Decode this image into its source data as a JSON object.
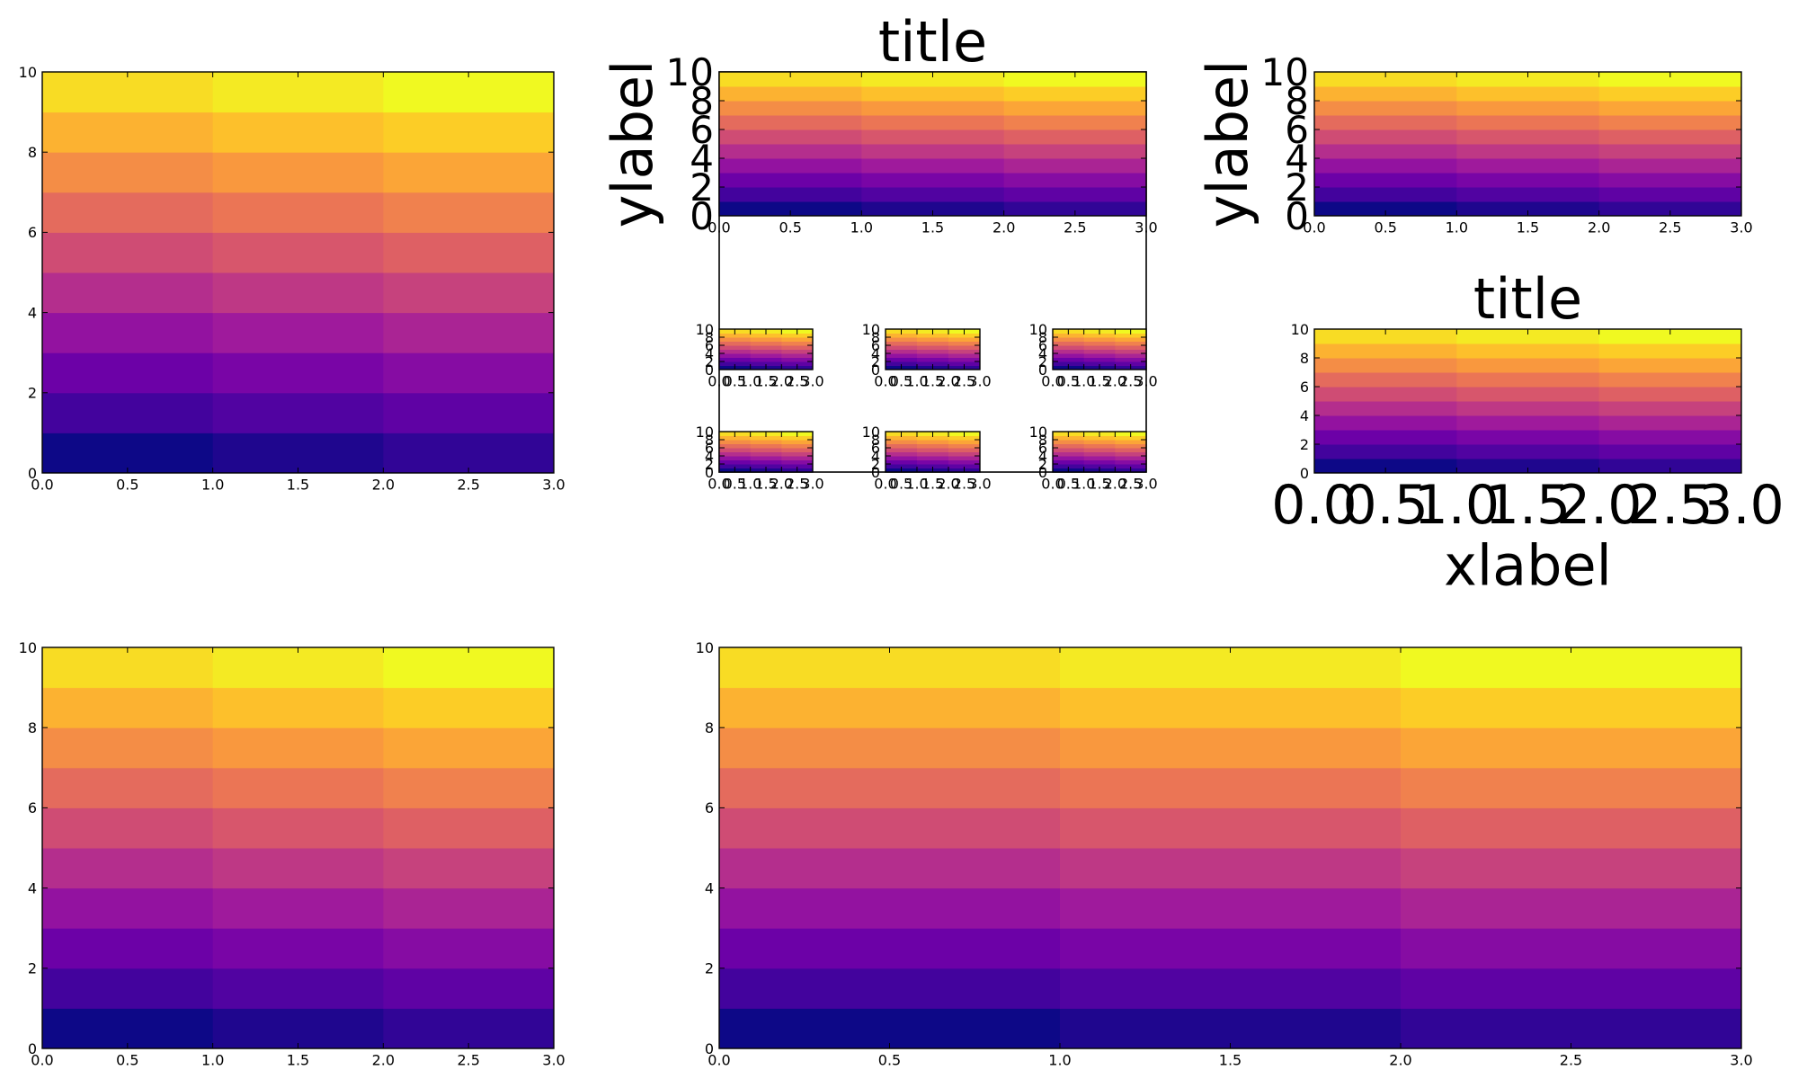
{
  "chart_data": [
    {
      "id": "top-left",
      "type": "heatmap",
      "title": "",
      "xlabel": "",
      "ylabel": "",
      "x_edges": [
        0,
        1,
        2,
        3
      ],
      "y_edges": [
        0,
        1,
        2,
        3,
        4,
        5,
        6,
        7,
        8,
        9,
        10
      ],
      "xlim": [
        0,
        3
      ],
      "ylim": [
        0,
        10
      ],
      "xticks": [
        "0.0",
        "0.5",
        "1.0",
        "1.5",
        "2.0",
        "2.5",
        "3.0"
      ],
      "yticks": [
        "0",
        "2",
        "4",
        "6",
        "8",
        "10"
      ],
      "colormap": "plasma",
      "values": [
        [
          0,
          1,
          2
        ],
        [
          3,
          4,
          5
        ],
        [
          6,
          7,
          8
        ],
        [
          9,
          10,
          11
        ],
        [
          12,
          13,
          14
        ],
        [
          15,
          16,
          17
        ],
        [
          18,
          19,
          20
        ],
        [
          21,
          22,
          23
        ],
        [
          24,
          25,
          26
        ],
        [
          27,
          28,
          29
        ]
      ]
    },
    {
      "id": "top-middle",
      "type": "heatmap",
      "title": "title",
      "xlabel": "",
      "ylabel": "ylabel",
      "x_edges": [
        0,
        1,
        2,
        3
      ],
      "y_edges": [
        0,
        1,
        2,
        3,
        4,
        5,
        6,
        7,
        8,
        9,
        10
      ],
      "xlim": [
        0,
        3
      ],
      "ylim": [
        0,
        10
      ],
      "xticks": [
        "0.0",
        "0.5",
        "1.0",
        "1.5",
        "2.0",
        "2.5",
        "3.0"
      ],
      "yticks": [
        "0",
        "2",
        "4",
        "6",
        "8",
        "10"
      ],
      "colormap": "plasma",
      "values": [
        [
          0,
          1,
          2
        ],
        [
          3,
          4,
          5
        ],
        [
          6,
          7,
          8
        ],
        [
          9,
          10,
          11
        ],
        [
          12,
          13,
          14
        ],
        [
          15,
          16,
          17
        ],
        [
          18,
          19,
          20
        ],
        [
          21,
          22,
          23
        ],
        [
          24,
          25,
          26
        ],
        [
          27,
          28,
          29
        ]
      ]
    },
    {
      "id": "top-right",
      "type": "heatmap",
      "title": "",
      "xlabel": "",
      "ylabel": "ylabel",
      "x_edges": [
        0,
        1,
        2,
        3
      ],
      "y_edges": [
        0,
        1,
        2,
        3,
        4,
        5,
        6,
        7,
        8,
        9,
        10
      ],
      "xlim": [
        0,
        3
      ],
      "ylim": [
        0,
        10
      ],
      "xticks": [
        "0.0",
        "0.5",
        "1.0",
        "1.5",
        "2.0",
        "2.5",
        "3.0"
      ],
      "yticks": [
        "0",
        "2",
        "4",
        "6",
        "8",
        "10"
      ],
      "colormap": "plasma",
      "values": [
        [
          0,
          1,
          2
        ],
        [
          3,
          4,
          5
        ],
        [
          6,
          7,
          8
        ],
        [
          9,
          10,
          11
        ],
        [
          12,
          13,
          14
        ],
        [
          15,
          16,
          17
        ],
        [
          18,
          19,
          20
        ],
        [
          21,
          22,
          23
        ],
        [
          24,
          25,
          26
        ],
        [
          27,
          28,
          29
        ]
      ]
    },
    {
      "id": "mid-right",
      "type": "heatmap",
      "title": "title",
      "xlabel": "xlabel",
      "ylabel": "",
      "x_edges": [
        0,
        1,
        2,
        3
      ],
      "y_edges": [
        0,
        1,
        2,
        3,
        4,
        5,
        6,
        7,
        8,
        9,
        10
      ],
      "xlim": [
        0,
        3
      ],
      "ylim": [
        0,
        10
      ],
      "xticks": [
        "0.0",
        "0.5",
        "1.0",
        "1.5",
        "2.0",
        "2.5",
        "3.0"
      ],
      "yticks": [
        "0",
        "2",
        "4",
        "6",
        "8",
        "10"
      ],
      "colormap": "plasma",
      "values": [
        [
          0,
          1,
          2
        ],
        [
          3,
          4,
          5
        ],
        [
          6,
          7,
          8
        ],
        [
          9,
          10,
          11
        ],
        [
          12,
          13,
          14
        ],
        [
          15,
          16,
          17
        ],
        [
          18,
          19,
          20
        ],
        [
          21,
          22,
          23
        ],
        [
          24,
          25,
          26
        ],
        [
          27,
          28,
          29
        ]
      ]
    },
    {
      "id": "small-1",
      "type": "heatmap",
      "title": "",
      "xlabel": "",
      "ylabel": "",
      "x_edges": [
        0,
        1,
        2,
        3
      ],
      "y_edges": [
        0,
        1,
        2,
        3,
        4,
        5,
        6,
        7,
        8,
        9,
        10
      ],
      "xlim": [
        0,
        3
      ],
      "ylim": [
        0,
        10
      ],
      "xticks": [
        "0.0",
        "0.5",
        "1.0",
        "1.5",
        "2.0",
        "2.5",
        "3.0"
      ],
      "yticks": [
        "0",
        "2",
        "4",
        "6",
        "8",
        "10"
      ],
      "colormap": "plasma",
      "values": [
        [
          0,
          1,
          2
        ],
        [
          3,
          4,
          5
        ],
        [
          6,
          7,
          8
        ],
        [
          9,
          10,
          11
        ],
        [
          12,
          13,
          14
        ],
        [
          15,
          16,
          17
        ],
        [
          18,
          19,
          20
        ],
        [
          21,
          22,
          23
        ],
        [
          24,
          25,
          26
        ],
        [
          27,
          28,
          29
        ]
      ]
    },
    {
      "id": "small-2",
      "type": "heatmap",
      "title": "",
      "xlabel": "",
      "ylabel": "",
      "x_edges": [
        0,
        1,
        2,
        3
      ],
      "y_edges": [
        0,
        1,
        2,
        3,
        4,
        5,
        6,
        7,
        8,
        9,
        10
      ],
      "xlim": [
        0,
        3
      ],
      "ylim": [
        0,
        10
      ],
      "xticks": [
        "0.0",
        "0.5",
        "1.0",
        "1.5",
        "2.0",
        "2.5",
        "3.0"
      ],
      "yticks": [
        "0",
        "2",
        "4",
        "6",
        "8",
        "10"
      ],
      "colormap": "plasma",
      "values": [
        [
          0,
          1,
          2
        ],
        [
          3,
          4,
          5
        ],
        [
          6,
          7,
          8
        ],
        [
          9,
          10,
          11
        ],
        [
          12,
          13,
          14
        ],
        [
          15,
          16,
          17
        ],
        [
          18,
          19,
          20
        ],
        [
          21,
          22,
          23
        ],
        [
          24,
          25,
          26
        ],
        [
          27,
          28,
          29
        ]
      ]
    },
    {
      "id": "small-3",
      "type": "heatmap",
      "title": "",
      "xlabel": "",
      "ylabel": "",
      "x_edges": [
        0,
        1,
        2,
        3
      ],
      "y_edges": [
        0,
        1,
        2,
        3,
        4,
        5,
        6,
        7,
        8,
        9,
        10
      ],
      "xlim": [
        0,
        3
      ],
      "ylim": [
        0,
        10
      ],
      "xticks": [
        "0.0",
        "0.5",
        "1.0",
        "1.5",
        "2.0",
        "2.5",
        "3.0"
      ],
      "yticks": [
        "0",
        "2",
        "4",
        "6",
        "8",
        "10"
      ],
      "colormap": "plasma",
      "values": [
        [
          0,
          1,
          2
        ],
        [
          3,
          4,
          5
        ],
        [
          6,
          7,
          8
        ],
        [
          9,
          10,
          11
        ],
        [
          12,
          13,
          14
        ],
        [
          15,
          16,
          17
        ],
        [
          18,
          19,
          20
        ],
        [
          21,
          22,
          23
        ],
        [
          24,
          25,
          26
        ],
        [
          27,
          28,
          29
        ]
      ]
    },
    {
      "id": "small-4",
      "type": "heatmap",
      "title": "",
      "xlabel": "",
      "ylabel": "",
      "x_edges": [
        0,
        1,
        2,
        3
      ],
      "y_edges": [
        0,
        1,
        2,
        3,
        4,
        5,
        6,
        7,
        8,
        9,
        10
      ],
      "xlim": [
        0,
        3
      ],
      "ylim": [
        0,
        10
      ],
      "xticks": [
        "0.0",
        "0.5",
        "1.0",
        "1.5",
        "2.0",
        "2.5",
        "3.0"
      ],
      "yticks": [
        "0",
        "2",
        "4",
        "6",
        "8",
        "10"
      ],
      "colormap": "plasma",
      "values": [
        [
          0,
          1,
          2
        ],
        [
          3,
          4,
          5
        ],
        [
          6,
          7,
          8
        ],
        [
          9,
          10,
          11
        ],
        [
          12,
          13,
          14
        ],
        [
          15,
          16,
          17
        ],
        [
          18,
          19,
          20
        ],
        [
          21,
          22,
          23
        ],
        [
          24,
          25,
          26
        ],
        [
          27,
          28,
          29
        ]
      ]
    },
    {
      "id": "small-5",
      "type": "heatmap",
      "title": "",
      "xlabel": "",
      "ylabel": "",
      "x_edges": [
        0,
        1,
        2,
        3
      ],
      "y_edges": [
        0,
        1,
        2,
        3,
        4,
        5,
        6,
        7,
        8,
        9,
        10
      ],
      "xlim": [
        0,
        3
      ],
      "ylim": [
        0,
        10
      ],
      "xticks": [
        "0.0",
        "0.5",
        "1.0",
        "1.5",
        "2.0",
        "2.5",
        "3.0"
      ],
      "yticks": [
        "0",
        "2",
        "4",
        "6",
        "8",
        "10"
      ],
      "colormap": "plasma",
      "values": [
        [
          0,
          1,
          2
        ],
        [
          3,
          4,
          5
        ],
        [
          6,
          7,
          8
        ],
        [
          9,
          10,
          11
        ],
        [
          12,
          13,
          14
        ],
        [
          15,
          16,
          17
        ],
        [
          18,
          19,
          20
        ],
        [
          21,
          22,
          23
        ],
        [
          24,
          25,
          26
        ],
        [
          27,
          28,
          29
        ]
      ]
    },
    {
      "id": "small-6",
      "type": "heatmap",
      "title": "",
      "xlabel": "",
      "ylabel": "",
      "x_edges": [
        0,
        1,
        2,
        3
      ],
      "y_edges": [
        0,
        1,
        2,
        3,
        4,
        5,
        6,
        7,
        8,
        9,
        10
      ],
      "xlim": [
        0,
        3
      ],
      "ylim": [
        0,
        10
      ],
      "xticks": [
        "0.0",
        "0.5",
        "1.0",
        "1.5",
        "2.0",
        "2.5",
        "3.0"
      ],
      "yticks": [
        "0",
        "2",
        "4",
        "6",
        "8",
        "10"
      ],
      "colormap": "plasma",
      "values": [
        [
          0,
          1,
          2
        ],
        [
          3,
          4,
          5
        ],
        [
          6,
          7,
          8
        ],
        [
          9,
          10,
          11
        ],
        [
          12,
          13,
          14
        ],
        [
          15,
          16,
          17
        ],
        [
          18,
          19,
          20
        ],
        [
          21,
          22,
          23
        ],
        [
          24,
          25,
          26
        ],
        [
          27,
          28,
          29
        ]
      ]
    },
    {
      "id": "bottom-left",
      "type": "heatmap",
      "title": "",
      "xlabel": "",
      "ylabel": "",
      "x_edges": [
        0,
        1,
        2,
        3
      ],
      "y_edges": [
        0,
        1,
        2,
        3,
        4,
        5,
        6,
        7,
        8,
        9,
        10
      ],
      "xlim": [
        0,
        3
      ],
      "ylim": [
        0,
        10
      ],
      "xticks": [
        "0.0",
        "0.5",
        "1.0",
        "1.5",
        "2.0",
        "2.5",
        "3.0"
      ],
      "yticks": [
        "0",
        "2",
        "4",
        "6",
        "8",
        "10"
      ],
      "colormap": "plasma",
      "values": [
        [
          0,
          1,
          2
        ],
        [
          3,
          4,
          5
        ],
        [
          6,
          7,
          8
        ],
        [
          9,
          10,
          11
        ],
        [
          12,
          13,
          14
        ],
        [
          15,
          16,
          17
        ],
        [
          18,
          19,
          20
        ],
        [
          21,
          22,
          23
        ],
        [
          24,
          25,
          26
        ],
        [
          27,
          28,
          29
        ]
      ]
    },
    {
      "id": "bottom-right",
      "type": "heatmap",
      "title": "",
      "xlabel": "",
      "ylabel": "",
      "x_edges": [
        0,
        1,
        2,
        3
      ],
      "y_edges": [
        0,
        1,
        2,
        3,
        4,
        5,
        6,
        7,
        8,
        9,
        10
      ],
      "xlim": [
        0,
        3
      ],
      "ylim": [
        0,
        10
      ],
      "xticks": [
        "0.0",
        "0.5",
        "1.0",
        "1.5",
        "2.0",
        "2.5",
        "3.0"
      ],
      "yticks": [
        "0",
        "2",
        "4",
        "6",
        "8",
        "10"
      ],
      "colormap": "plasma",
      "values": [
        [
          0,
          1,
          2
        ],
        [
          3,
          4,
          5
        ],
        [
          6,
          7,
          8
        ],
        [
          9,
          10,
          11
        ],
        [
          12,
          13,
          14
        ],
        [
          15,
          16,
          17
        ],
        [
          18,
          19,
          20
        ],
        [
          21,
          22,
          23
        ],
        [
          24,
          25,
          26
        ],
        [
          27,
          28,
          29
        ]
      ]
    }
  ]
}
